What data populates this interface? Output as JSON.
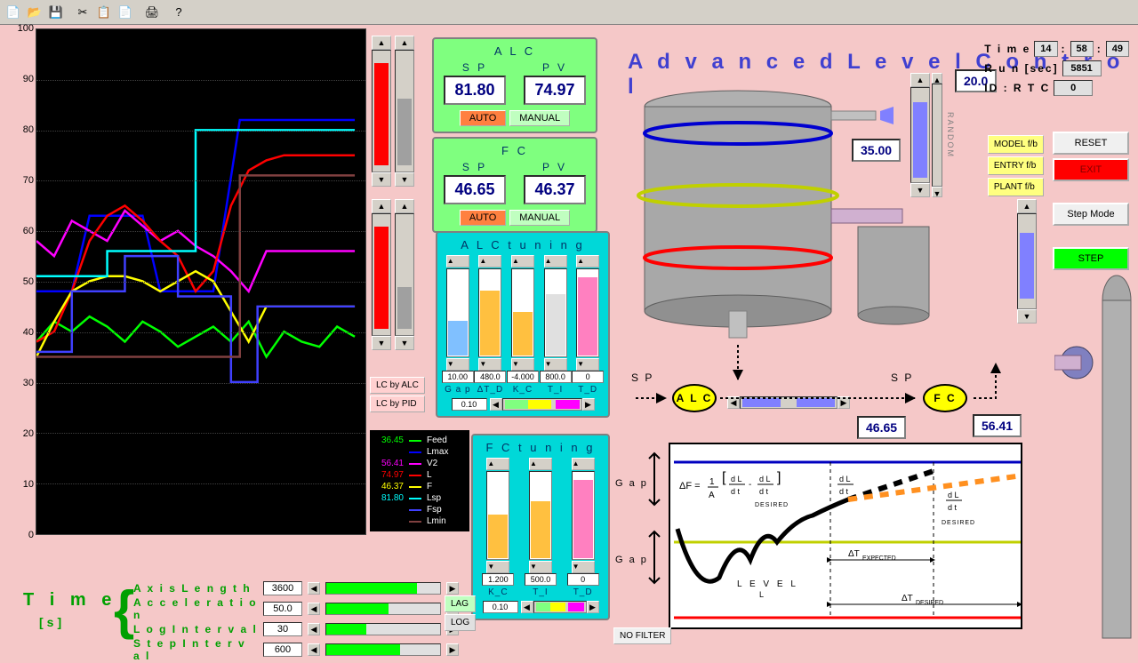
{
  "toolbar_icons": [
    "📄",
    "📂",
    "💾",
    "",
    "✂",
    "📋",
    "📄",
    "",
    "🖨",
    "",
    "?"
  ],
  "chart": {
    "y_min": 0,
    "y_max": 100,
    "y_step": 10,
    "bg": "#000000",
    "grid": "#404040",
    "series": {
      "feed": {
        "color": "#00ff00",
        "val": "36.45",
        "name": "Feed",
        "pts": [
          [
            0,
            38
          ],
          [
            20,
            42
          ],
          [
            40,
            40
          ],
          [
            60,
            43
          ],
          [
            80,
            41
          ],
          [
            100,
            38
          ],
          [
            120,
            42
          ],
          [
            140,
            40
          ],
          [
            160,
            37
          ],
          [
            180,
            39
          ],
          [
            200,
            41
          ],
          [
            220,
            38
          ],
          [
            240,
            42
          ],
          [
            260,
            35
          ],
          [
            280,
            40
          ],
          [
            300,
            38
          ],
          [
            320,
            37
          ],
          [
            340,
            41
          ],
          [
            360,
            39
          ]
        ]
      },
      "lmax": {
        "color": "#0000ff",
        "val": "",
        "name": "Lmax",
        "pts": [
          [
            0,
            48
          ],
          [
            40,
            48
          ],
          [
            60,
            63
          ],
          [
            120,
            63
          ],
          [
            140,
            48
          ],
          [
            200,
            48
          ],
          [
            230,
            82
          ],
          [
            360,
            82
          ]
        ]
      },
      "v2": {
        "color": "#ff00ff",
        "val": "56.41",
        "name": "V2",
        "pts": [
          [
            0,
            58
          ],
          [
            20,
            55
          ],
          [
            40,
            62
          ],
          [
            60,
            60
          ],
          [
            80,
            58
          ],
          [
            100,
            64
          ],
          [
            120,
            61
          ],
          [
            140,
            58
          ],
          [
            160,
            60
          ],
          [
            180,
            57
          ],
          [
            200,
            55
          ],
          [
            220,
            52
          ],
          [
            240,
            48
          ],
          [
            260,
            56
          ],
          [
            280,
            56
          ],
          [
            300,
            56
          ],
          [
            320,
            56
          ],
          [
            340,
            56
          ],
          [
            360,
            56
          ]
        ]
      },
      "l": {
        "color": "#ff0000",
        "val": "74.97",
        "name": "L",
        "pts": [
          [
            0,
            38
          ],
          [
            20,
            40
          ],
          [
            40,
            48
          ],
          [
            60,
            58
          ],
          [
            80,
            63
          ],
          [
            100,
            65
          ],
          [
            120,
            62
          ],
          [
            140,
            58
          ],
          [
            160,
            55
          ],
          [
            180,
            48
          ],
          [
            200,
            52
          ],
          [
            220,
            65
          ],
          [
            240,
            72
          ],
          [
            260,
            74
          ],
          [
            280,
            75
          ],
          [
            300,
            75
          ],
          [
            320,
            75
          ],
          [
            340,
            75
          ],
          [
            360,
            75
          ]
        ]
      },
      "f": {
        "color": "#ffff00",
        "val": "46.37",
        "name": "F",
        "pts": [
          [
            0,
            35
          ],
          [
            20,
            42
          ],
          [
            40,
            48
          ],
          [
            60,
            50
          ],
          [
            80,
            51
          ],
          [
            100,
            51
          ],
          [
            120,
            50
          ],
          [
            140,
            48
          ],
          [
            160,
            50
          ],
          [
            180,
            52
          ],
          [
            200,
            50
          ],
          [
            220,
            44
          ],
          [
            240,
            38
          ],
          [
            260,
            45
          ],
          [
            280,
            45
          ],
          [
            300,
            45
          ],
          [
            320,
            45
          ],
          [
            340,
            45
          ],
          [
            360,
            45
          ]
        ]
      },
      "lsp": {
        "color": "#00ffff",
        "val": "81.80",
        "name": "Lsp",
        "pts": [
          [
            0,
            51
          ],
          [
            80,
            51
          ],
          [
            80,
            56
          ],
          [
            180,
            56
          ],
          [
            180,
            80
          ],
          [
            360,
            80
          ]
        ]
      },
      "fsp": {
        "color": "#4040ff",
        "val": "",
        "name": "Fsp",
        "pts": [
          [
            0,
            36
          ],
          [
            40,
            36
          ],
          [
            40,
            48
          ],
          [
            100,
            48
          ],
          [
            100,
            55
          ],
          [
            160,
            55
          ],
          [
            160,
            47
          ],
          [
            220,
            47
          ],
          [
            220,
            30
          ],
          [
            250,
            30
          ],
          [
            250,
            45
          ],
          [
            360,
            45
          ]
        ]
      },
      "lmin": {
        "color": "#804040",
        "val": "",
        "name": "Lmin",
        "pts": [
          [
            0,
            35
          ],
          [
            230,
            35
          ],
          [
            230,
            71
          ],
          [
            360,
            71
          ]
        ]
      }
    }
  },
  "alc": {
    "title": "A L C",
    "sp": "81.80",
    "pv": "74.97",
    "auto": "AUTO",
    "manual": "MANUAL"
  },
  "fc": {
    "title": "F C",
    "sp": "46.65",
    "pv": "46.37",
    "auto": "AUTO",
    "manual": "MANUAL"
  },
  "alc_tuning": {
    "title": "A L C  t u n i n g",
    "sliders": [
      {
        "val": "10.00",
        "label": "G a p",
        "fill": 0.4,
        "color": "#80c0ff"
      },
      {
        "val": "480.0",
        "label": "ΔT_D",
        "fill": 0.75,
        "color": "#ffc040"
      },
      {
        "val": "-4.000",
        "label": "K_C",
        "fill": 0.5,
        "color": "#ffc040"
      },
      {
        "val": "800.0",
        "label": "T_I",
        "fill": 0.7,
        "color": "#e0e0e0"
      },
      {
        "val": "0",
        "label": "T_D",
        "fill": 0.9,
        "color": "#ff80c0"
      }
    ],
    "bottom_val": "0.10"
  },
  "fc_tuning": {
    "title": "F C  t u n i n g",
    "sliders": [
      {
        "val": "1.200",
        "label": "K_C",
        "fill": 0.5,
        "color": "#ffc040"
      },
      {
        "val": "500.0",
        "label": "T_I",
        "fill": 0.65,
        "color": "#ffc040"
      },
      {
        "val": "0",
        "label": "T_D",
        "fill": 0.9,
        "color": "#ff80c0"
      }
    ],
    "bottom_val": "0.10"
  },
  "lc_btns": [
    "LC by ALC",
    "LC by PID"
  ],
  "app_title": "A d v a n c e d   L e v e l   C o n t r o l",
  "tank": {
    "top_val": "20.0",
    "side_val": "35.00",
    "random": "RANDOM"
  },
  "status": {
    "time_label": "T i m e",
    "time_h": "14",
    "time_m": "58",
    "time_s": "49",
    "run_label": "R u n [sec]",
    "run": "5851",
    "id_label": "ID :  R T C",
    "id": "0"
  },
  "fb": [
    "MODEL f/b",
    "ENTRY f/b",
    "PLANT f/b"
  ],
  "right": [
    {
      "label": "RESET",
      "bg": "#f0f0f0",
      "fg": "#000"
    },
    {
      "label": "EXIT",
      "bg": "#ff0000",
      "fg": "#800000"
    },
    {
      "label": "Step Mode",
      "bg": "#f0f0f0",
      "fg": "#000"
    },
    {
      "label": "STEP",
      "bg": "#00ff00",
      "fg": "#000"
    }
  ],
  "nodes": {
    "alc": "A L C",
    "fc": "F C",
    "alc_out": "46.65",
    "v2": "56.41",
    "sp": "S P"
  },
  "gap": "G a p",
  "nofilter": "NO FILTER",
  "formula": {
    "df": "ΔF =",
    "frac": "1/A",
    "dldt": "d L/d t",
    "desired": "DESIRED",
    "level": "L E V E L",
    "l": "L",
    "dt_exp": "ΔT",
    "exp": "EXPECTED",
    "dt_des": "ΔT",
    "des": "DESIRED"
  },
  "time": {
    "title": "T i m e",
    "sub": "[s]",
    "params": [
      {
        "label": "A x i s  L e n g t h",
        "val": "3600",
        "fill": 0.8
      },
      {
        "label": "A c c e l e r a t i o n",
        "val": "50.0",
        "fill": 0.55
      },
      {
        "label": "L o g  I n t e r v a l",
        "val": "30",
        "fill": 0.35
      },
      {
        "label": "S t e p  I n t e r v a l",
        "val": "600",
        "fill": 0.65
      }
    ],
    "lag": "LAG",
    "log": "LOG"
  }
}
